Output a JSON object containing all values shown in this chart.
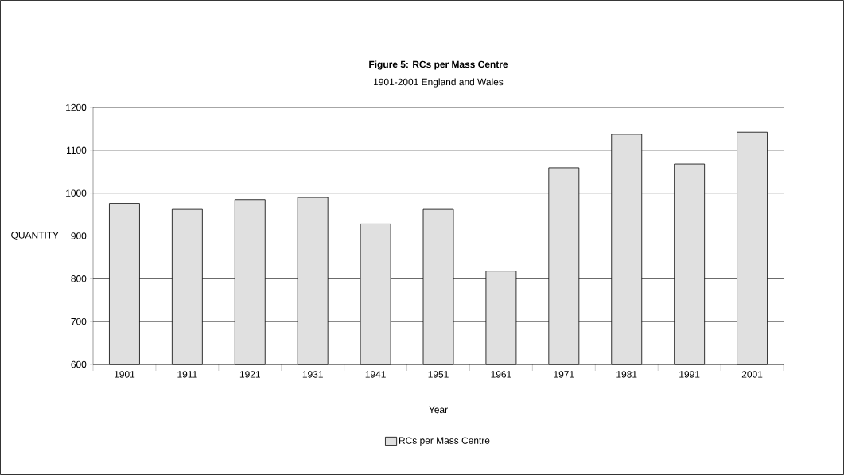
{
  "chart_data": {
    "type": "bar",
    "title": "Figure 5: RCs per Mass Centre",
    "subtitle": "1901-2001 England and Wales",
    "xlabel": "Year",
    "ylabel": "QUANTITY",
    "categories": [
      "1901",
      "1911",
      "1921",
      "1931",
      "1941",
      "1951",
      "1961",
      "1971",
      "1981",
      "1991",
      "2001"
    ],
    "series": [
      {
        "name": "RCs per Mass Centre",
        "color": "#e0e0e0",
        "values": [
          976,
          962,
          985,
          990,
          928,
          962,
          818,
          1059,
          1137,
          1068,
          1142
        ]
      }
    ],
    "ylim": [
      600,
      1200
    ],
    "yticks": [
      600,
      700,
      800,
      900,
      1000,
      1100,
      1200
    ],
    "grid": "y",
    "legend": "bottom"
  }
}
